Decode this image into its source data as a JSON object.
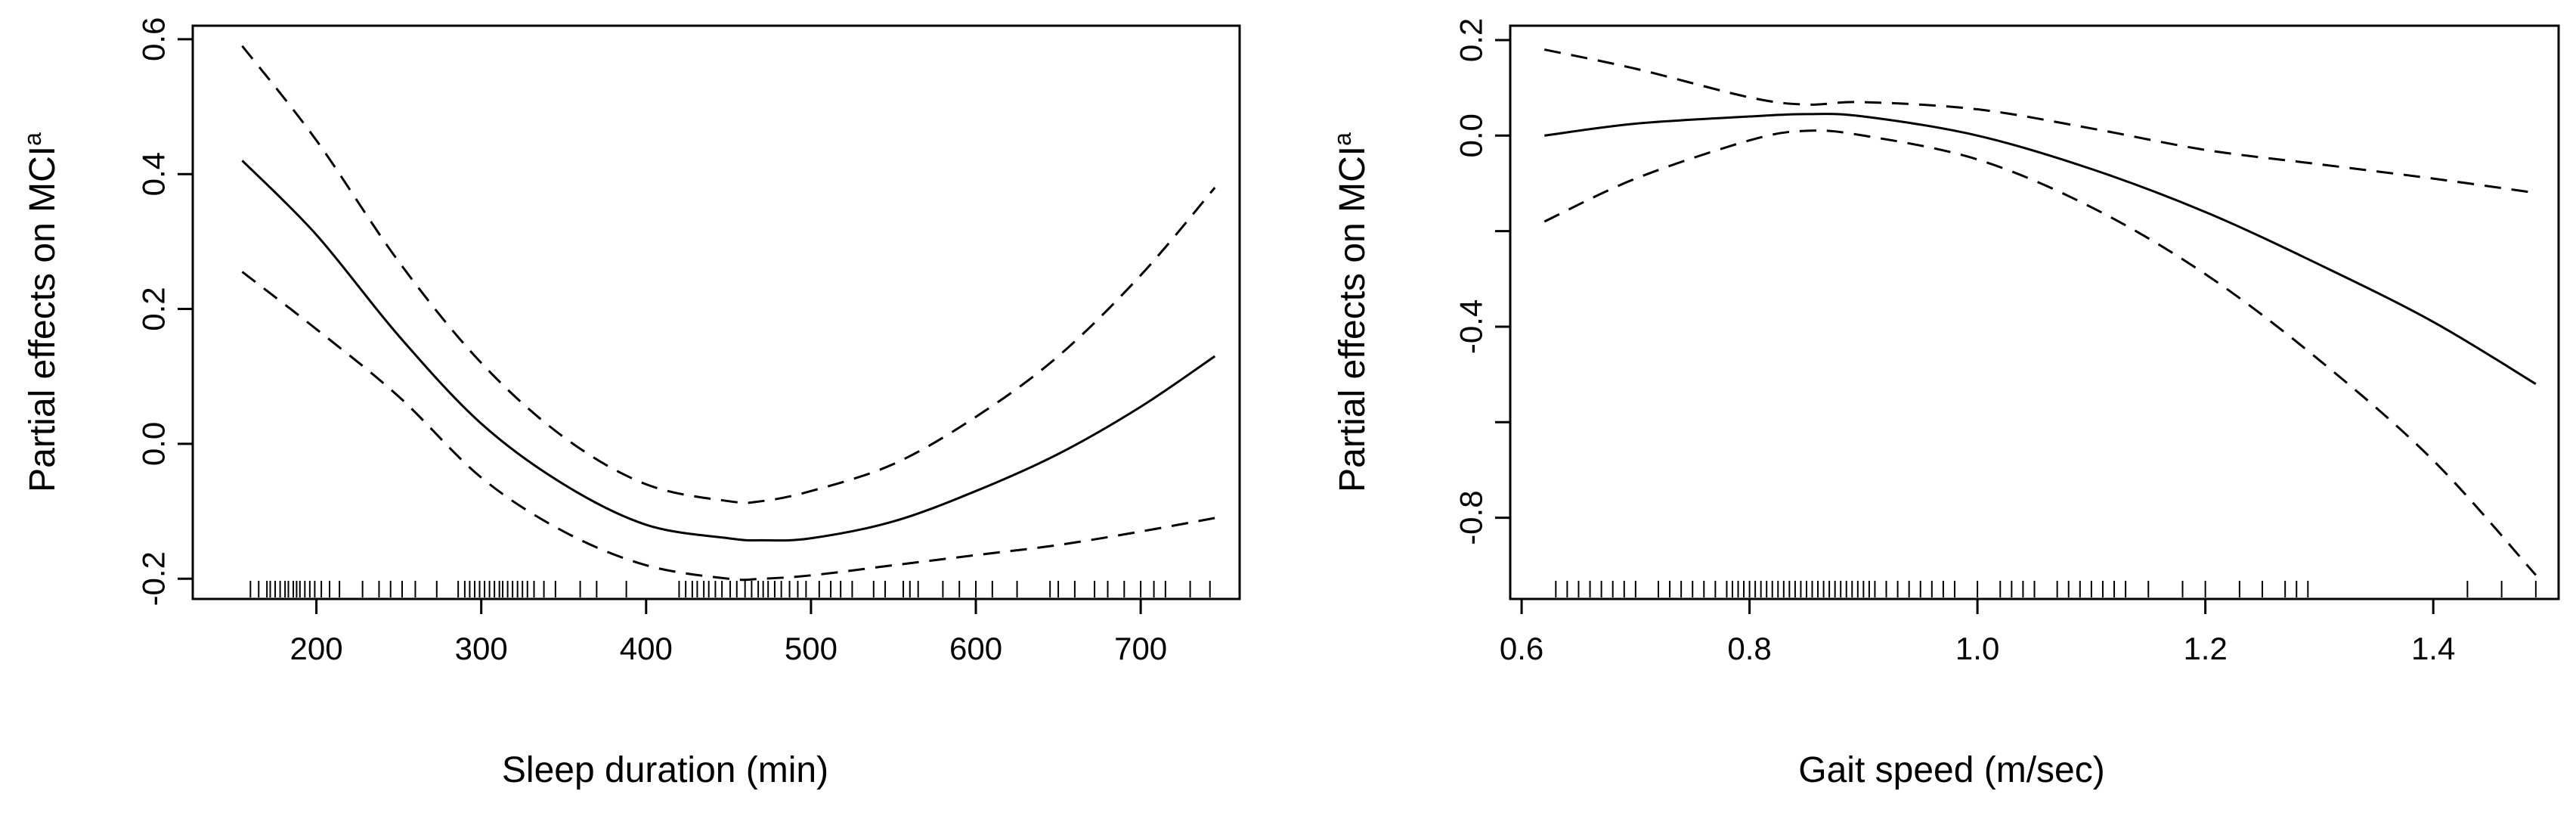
{
  "colors": {
    "line": "#000000",
    "background": "#ffffff"
  },
  "chart_data": [
    {
      "type": "line",
      "xlabel": "Sleep duration (min)",
      "ylabel": "Partial effects on MCI",
      "ylabel_superscript": "a",
      "xlim": [
        125,
        760
      ],
      "ylim": [
        -0.23,
        0.62
      ],
      "xticks": [
        200,
        300,
        400,
        500,
        600,
        700
      ],
      "xtick_labels": [
        "200",
        "300",
        "400",
        "500",
        "600",
        "700"
      ],
      "yticks": [
        -0.2,
        0.0,
        0.2,
        0.4,
        0.6
      ],
      "ytick_labels": [
        "-0.2",
        "0.0",
        "0.2",
        "0.4",
        "0.6"
      ],
      "grid": false,
      "series": [
        {
          "style": "solid",
          "x": [
            155,
            200,
            250,
            300,
            350,
            400,
            450,
            470,
            500,
            550,
            600,
            650,
            700,
            745
          ],
          "y": [
            0.42,
            0.31,
            0.16,
            0.03,
            -0.06,
            -0.12,
            -0.14,
            -0.143,
            -0.14,
            -0.115,
            -0.07,
            -0.015,
            0.055,
            0.13
          ]
        },
        {
          "style": "dashed",
          "x": [
            155,
            200,
            250,
            300,
            350,
            400,
            450,
            470,
            500,
            550,
            600,
            650,
            700,
            745
          ],
          "y": [
            0.59,
            0.45,
            0.27,
            0.12,
            0.01,
            -0.06,
            -0.085,
            -0.085,
            -0.07,
            -0.03,
            0.04,
            0.13,
            0.25,
            0.38
          ]
        },
        {
          "style": "dashed",
          "x": [
            155,
            200,
            250,
            300,
            350,
            400,
            450,
            470,
            500,
            550,
            600,
            650,
            700,
            745
          ],
          "y": [
            0.255,
            0.17,
            0.07,
            -0.05,
            -0.13,
            -0.18,
            -0.2,
            -0.2,
            -0.195,
            -0.18,
            -0.165,
            -0.15,
            -0.13,
            -0.11
          ]
        }
      ],
      "rug": [
        160,
        165,
        170,
        172,
        175,
        178,
        181,
        183,
        186,
        188,
        190,
        193,
        196,
        199,
        203,
        208,
        214,
        228,
        238,
        245,
        252,
        260,
        273,
        286,
        290,
        293,
        296,
        299,
        302,
        305,
        308,
        311,
        313,
        316,
        319,
        322,
        325,
        328,
        332,
        338,
        345,
        360,
        370,
        388,
        420,
        424,
        428,
        431,
        435,
        438,
        442,
        446,
        451,
        455,
        460,
        464,
        468,
        471,
        474,
        478,
        482,
        487,
        492,
        497,
        505,
        512,
        518,
        525,
        538,
        545,
        556,
        560,
        565,
        580,
        590,
        600,
        610,
        625,
        645,
        650,
        660,
        672,
        680,
        690,
        700,
        708,
        715,
        730,
        742
      ]
    },
    {
      "type": "line",
      "xlabel": "Gait speed (m/sec)",
      "ylabel": "Partial effects on MCI",
      "ylabel_superscript": "a",
      "xlim": [
        0.59,
        1.51
      ],
      "ylim": [
        -0.97,
        0.23
      ],
      "xticks": [
        0.6,
        0.8,
        1.0,
        1.2,
        1.4
      ],
      "xtick_labels": [
        "0.6",
        "0.8",
        "1.0",
        "1.2",
        "1.4"
      ],
      "yticks": [
        -0.8,
        -0.6,
        -0.4,
        -0.2,
        0.0,
        0.2
      ],
      "ytick_labels": [
        "-0.8",
        "",
        "-0.4",
        "",
        "0.0",
        "0.2"
      ],
      "grid": false,
      "series": [
        {
          "style": "solid",
          "x": [
            0.62,
            0.7,
            0.8,
            0.85,
            0.9,
            1.0,
            1.1,
            1.2,
            1.3,
            1.4,
            1.49
          ],
          "y": [
            0.0,
            0.025,
            0.04,
            0.045,
            0.04,
            0.0,
            -0.07,
            -0.16,
            -0.27,
            -0.39,
            -0.52
          ]
        },
        {
          "style": "dashed",
          "x": [
            0.62,
            0.7,
            0.8,
            0.85,
            0.9,
            1.0,
            1.1,
            1.2,
            1.3,
            1.4,
            1.49
          ],
          "y": [
            0.18,
            0.14,
            0.08,
            0.065,
            0.07,
            0.055,
            0.015,
            -0.03,
            -0.06,
            -0.09,
            -0.12
          ]
        },
        {
          "style": "dashed",
          "x": [
            0.62,
            0.7,
            0.8,
            0.85,
            0.9,
            1.0,
            1.1,
            1.2,
            1.3,
            1.4,
            1.49
          ],
          "y": [
            -0.18,
            -0.09,
            -0.01,
            0.01,
            0.0,
            -0.05,
            -0.15,
            -0.29,
            -0.47,
            -0.68,
            -0.92
          ]
        }
      ],
      "rug": [
        0.63,
        0.64,
        0.65,
        0.66,
        0.67,
        0.68,
        0.69,
        0.7,
        0.72,
        0.73,
        0.74,
        0.75,
        0.76,
        0.77,
        0.78,
        0.785,
        0.79,
        0.795,
        0.8,
        0.805,
        0.81,
        0.815,
        0.82,
        0.825,
        0.83,
        0.835,
        0.84,
        0.845,
        0.85,
        0.855,
        0.86,
        0.865,
        0.87,
        0.875,
        0.88,
        0.885,
        0.89,
        0.895,
        0.9,
        0.905,
        0.91,
        0.92,
        0.93,
        0.94,
        0.95,
        0.96,
        0.97,
        0.98,
        1.0,
        1.02,
        1.03,
        1.04,
        1.05,
        1.07,
        1.08,
        1.09,
        1.1,
        1.11,
        1.12,
        1.13,
        1.15,
        1.18,
        1.2,
        1.23,
        1.25,
        1.27,
        1.28,
        1.29,
        1.43,
        1.46,
        1.49
      ]
    }
  ]
}
